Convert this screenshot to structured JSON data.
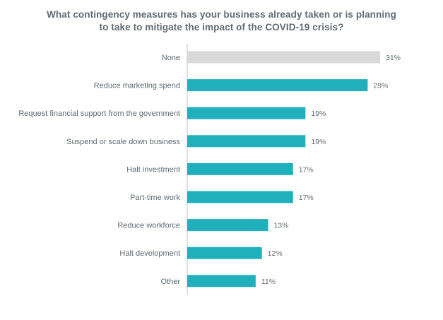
{
  "chart_data": {
    "type": "bar",
    "orientation": "horizontal",
    "title_lines": [
      "What contingency measures has your business already taken or is planning",
      "to take to mitigate the impact of the COVID-19 crisis?"
    ],
    "categories": [
      "None",
      "Reduce marketing spend",
      "Request financial support from the government",
      "Suspend or scale down business",
      "Halt investment",
      "Part-time work",
      "Reduce workforce",
      "Halt development",
      "Other"
    ],
    "values": [
      31,
      29,
      19,
      19,
      17,
      17,
      13,
      12,
      11
    ],
    "value_labels": [
      "31%",
      "29%",
      "19%",
      "19%",
      "17%",
      "17%",
      "13%",
      "12%",
      "11%"
    ],
    "unit": "%",
    "xlim": [
      0,
      31
    ],
    "grid": false,
    "legend": "none",
    "colors": {
      "highlight": "#d9d9d9",
      "bar": "#20b0bb",
      "axis": "#bfbfbf",
      "label": "#5f6b73",
      "title": "#5f6b73"
    },
    "highlight_index": 0
  }
}
